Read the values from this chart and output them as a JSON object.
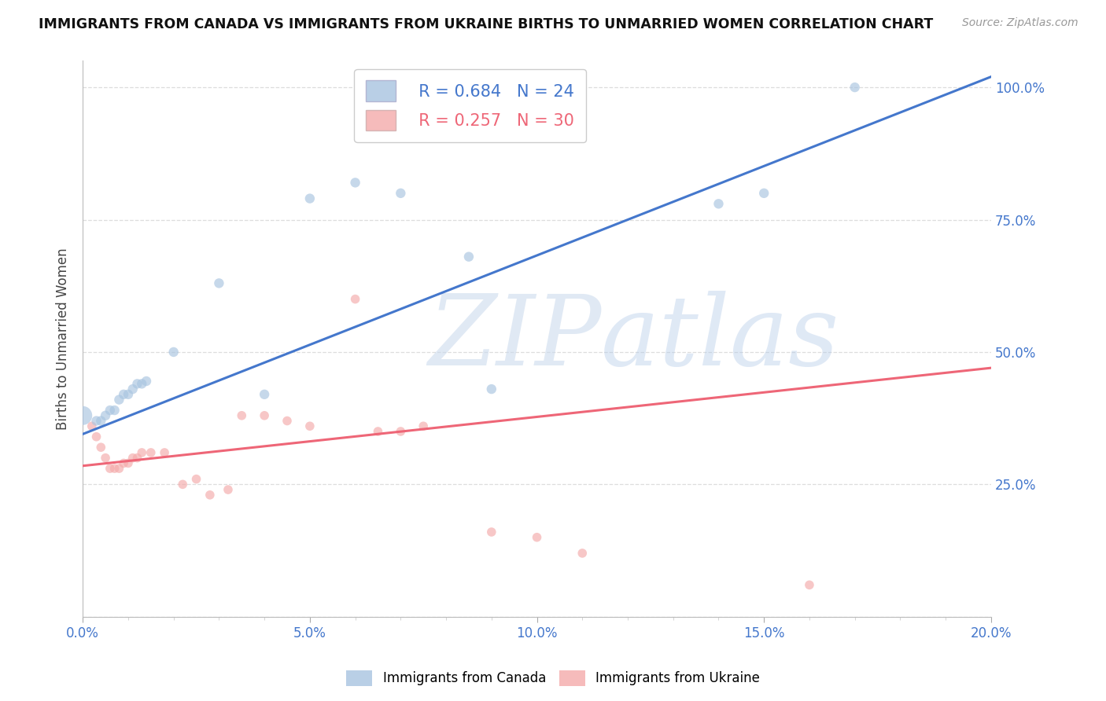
{
  "title": "IMMIGRANTS FROM CANADA VS IMMIGRANTS FROM UKRAINE BIRTHS TO UNMARRIED WOMEN CORRELATION CHART",
  "source": "Source: ZipAtlas.com",
  "ylabel": "Births to Unmarried Women",
  "watermark_zip": "ZIP",
  "watermark_atlas": "atlas",
  "blue_label": "Immigrants from Canada",
  "pink_label": "Immigrants from Ukraine",
  "blue_R": "R = 0.684",
  "blue_N": "N = 24",
  "pink_R": "R = 0.257",
  "pink_N": "N = 30",
  "blue_color": "#A8C4E0",
  "pink_color": "#F4AAAA",
  "blue_line_color": "#4477CC",
  "pink_line_color": "#EE6677",
  "xlim": [
    0.0,
    0.2
  ],
  "ylim": [
    0.0,
    1.05
  ],
  "blue_x": [
    0.0,
    0.003,
    0.004,
    0.005,
    0.006,
    0.007,
    0.008,
    0.009,
    0.01,
    0.011,
    0.012,
    0.013,
    0.014,
    0.02,
    0.03,
    0.04,
    0.05,
    0.06,
    0.07,
    0.085,
    0.09,
    0.14,
    0.15,
    0.17
  ],
  "blue_y": [
    0.38,
    0.37,
    0.37,
    0.38,
    0.39,
    0.39,
    0.41,
    0.42,
    0.42,
    0.43,
    0.44,
    0.44,
    0.445,
    0.5,
    0.63,
    0.42,
    0.79,
    0.82,
    0.8,
    0.68,
    0.43,
    0.78,
    0.8,
    1.0
  ],
  "blue_sizes": [
    300,
    80,
    80,
    80,
    80,
    80,
    80,
    80,
    80,
    80,
    80,
    80,
    80,
    80,
    80,
    80,
    80,
    80,
    80,
    80,
    80,
    80,
    80,
    80
  ],
  "pink_x": [
    0.002,
    0.003,
    0.004,
    0.005,
    0.006,
    0.007,
    0.008,
    0.009,
    0.01,
    0.011,
    0.012,
    0.013,
    0.015,
    0.018,
    0.022,
    0.025,
    0.028,
    0.032,
    0.035,
    0.04,
    0.045,
    0.05,
    0.06,
    0.065,
    0.07,
    0.075,
    0.09,
    0.1,
    0.11,
    0.16
  ],
  "pink_y": [
    0.36,
    0.34,
    0.32,
    0.3,
    0.28,
    0.28,
    0.28,
    0.29,
    0.29,
    0.3,
    0.3,
    0.31,
    0.31,
    0.31,
    0.25,
    0.26,
    0.23,
    0.24,
    0.38,
    0.38,
    0.37,
    0.36,
    0.6,
    0.35,
    0.35,
    0.36,
    0.16,
    0.15,
    0.12,
    0.06
  ],
  "pink_sizes": [
    70,
    70,
    70,
    70,
    70,
    70,
    70,
    70,
    70,
    70,
    70,
    70,
    70,
    70,
    70,
    70,
    70,
    70,
    70,
    70,
    70,
    70,
    70,
    70,
    70,
    70,
    70,
    70,
    70,
    70
  ],
  "ytick_labels_right": [
    "100.0%",
    "75.0%",
    "50.0%",
    "25.0%"
  ],
  "ytick_values": [
    0.0,
    0.25,
    0.5,
    0.75,
    1.0
  ],
  "xtick_values": [
    0.0,
    0.05,
    0.1,
    0.15,
    0.2
  ],
  "xtick_labels": [
    "0.0%",
    "5.0%",
    "10.0%",
    "15.0%",
    "20.0%"
  ],
  "background_color": "#ffffff",
  "grid_color": "#dddddd"
}
